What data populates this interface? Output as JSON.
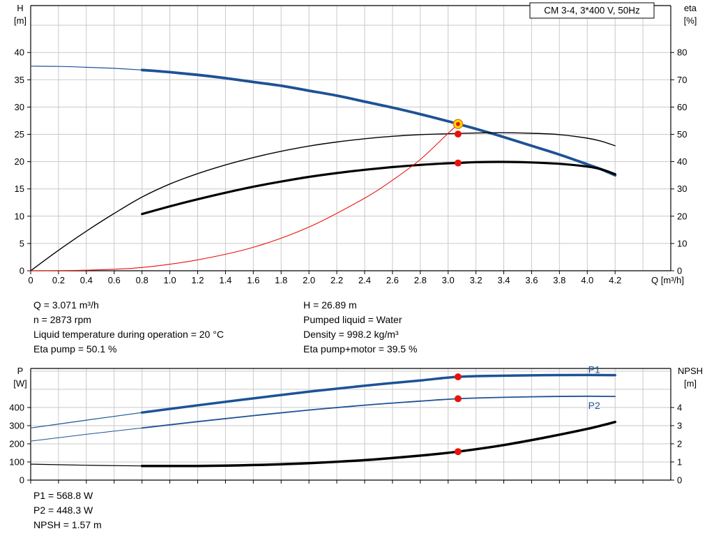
{
  "colors": {
    "blue": "#1d5296",
    "black": "#000000",
    "red": "#e8140c",
    "grid": "#c9c9c9",
    "axis": "#000000",
    "duty_fill": "#ffdf00",
    "duty_stroke": "#df7b00"
  },
  "chart_data": [
    {
      "id": "top",
      "type": "line",
      "title_box": "CM 3-4, 3*400 V, 50Hz",
      "x_axis": {
        "title": "Q [m³/h]",
        "tick_step": 0.2,
        "max": 4.6,
        "tick_labels": [
          "0",
          "0.2",
          "0.4",
          "0.6",
          "0.8",
          "1.0",
          "1.2",
          "1.4",
          "1.6",
          "1.8",
          "2.0",
          "2.2",
          "2.4",
          "2.6",
          "2.8",
          "3.0",
          "3.2",
          "3.4",
          "3.6",
          "3.8",
          "4.0",
          "4.2"
        ]
      },
      "left_axis": {
        "title": [
          "H",
          "[m]"
        ],
        "unit": "m",
        "tick_step": 5,
        "max": 48.6,
        "tick_labels": [
          "0",
          "5",
          "10",
          "15",
          "20",
          "25",
          "30",
          "35",
          "40"
        ]
      },
      "right_axis": {
        "title": [
          "eta",
          "[%]"
        ],
        "unit": "%",
        "max": 97.2,
        "tick_labels": [
          "0",
          "10",
          "20",
          "30",
          "40",
          "50",
          "60",
          "70",
          "80"
        ]
      },
      "series": [
        {
          "name": "head-curve",
          "label": "H pump curve",
          "axis": "left",
          "color": "blue",
          "width": 3.8,
          "thin_width": 1.2,
          "thick_from": 0.8,
          "points": [
            [
              0,
              37.5
            ],
            [
              0.2,
              37.45
            ],
            [
              0.4,
              37.3
            ],
            [
              0.6,
              37.1
            ],
            [
              0.8,
              36.8
            ],
            [
              1,
              36.4
            ],
            [
              1.2,
              35.9
            ],
            [
              1.4,
              35.3
            ],
            [
              1.6,
              34.6
            ],
            [
              1.8,
              33.9
            ],
            [
              2,
              33
            ],
            [
              2.2,
              32.1
            ],
            [
              2.4,
              31
            ],
            [
              2.6,
              29.9
            ],
            [
              2.8,
              28.7
            ],
            [
              3,
              27.4
            ],
            [
              3.071,
              26.89
            ],
            [
              3.2,
              26
            ],
            [
              3.4,
              24.5
            ],
            [
              3.6,
              22.9
            ],
            [
              3.8,
              21.3
            ],
            [
              4,
              19.5
            ],
            [
              4.1,
              18.6
            ],
            [
              4.2,
              17.5
            ]
          ]
        },
        {
          "name": "eta-pump-curve",
          "label": "Eta pump",
          "axis": "right",
          "color": "black",
          "width": 1.4,
          "points": [
            [
              0,
              0
            ],
            [
              0.2,
              7.5
            ],
            [
              0.4,
              14.5
            ],
            [
              0.6,
              21
            ],
            [
              0.8,
              27
            ],
            [
              1,
              31.8
            ],
            [
              1.2,
              35.6
            ],
            [
              1.4,
              38.8
            ],
            [
              1.6,
              41.5
            ],
            [
              1.8,
              43.8
            ],
            [
              2,
              45.7
            ],
            [
              2.2,
              47.2
            ],
            [
              2.4,
              48.4
            ],
            [
              2.6,
              49.3
            ],
            [
              2.8,
              49.9
            ],
            [
              3,
              50.2
            ],
            [
              3.2,
              50.5
            ],
            [
              3.4,
              50.6
            ],
            [
              3.6,
              50.4
            ],
            [
              3.8,
              49.9
            ],
            [
              4,
              48.6
            ],
            [
              4.1,
              47.5
            ],
            [
              4.2,
              45.8
            ]
          ]
        },
        {
          "name": "eta-pump-motor-curve",
          "label": "Eta pump+motor",
          "axis": "right",
          "color": "black",
          "width": 3.2,
          "points": [
            [
              0.8,
              20.8
            ],
            [
              1,
              23.6
            ],
            [
              1.2,
              26.2
            ],
            [
              1.4,
              28.6
            ],
            [
              1.6,
              30.8
            ],
            [
              1.8,
              32.7
            ],
            [
              2,
              34.4
            ],
            [
              2.2,
              35.8
            ],
            [
              2.4,
              37
            ],
            [
              2.6,
              38
            ],
            [
              2.8,
              38.8
            ],
            [
              3,
              39.4
            ],
            [
              3.071,
              39.5
            ],
            [
              3.2,
              39.8
            ],
            [
              3.4,
              39.9
            ],
            [
              3.6,
              39.7
            ],
            [
              3.8,
              39.2
            ],
            [
              4,
              38.2
            ],
            [
              4.1,
              37.2
            ],
            [
              4.2,
              35.4
            ]
          ]
        },
        {
          "name": "system-curve",
          "label": "System curve",
          "axis": "left",
          "color": "red",
          "width": 1.1,
          "points": [
            [
              0,
              0
            ],
            [
              0.4,
              0.1
            ],
            [
              0.8,
              0.6
            ],
            [
              1.2,
              2
            ],
            [
              1.6,
              4.3
            ],
            [
              2,
              8
            ],
            [
              2.4,
              13.3
            ],
            [
              2.6,
              16.6
            ],
            [
              2.8,
              20.4
            ],
            [
              3,
              25.2
            ],
            [
              3.071,
              26.89
            ]
          ]
        }
      ],
      "markers": [
        {
          "type": "duty",
          "q": 3.071,
          "value": 26.89,
          "axis": "left",
          "label": "Duty point Q-H"
        },
        {
          "type": "point",
          "q": 3.071,
          "value": 50.1,
          "axis": "right",
          "label": "Eta pump operating point"
        },
        {
          "type": "point",
          "q": 3.071,
          "value": 39.5,
          "axis": "right",
          "label": "Eta pump+motor operating point"
        }
      ]
    },
    {
      "id": "bottom",
      "type": "line",
      "x_axis": {
        "tick_step": 0.2,
        "max": 4.6
      },
      "left_axis": {
        "title": [
          "P",
          "[W]"
        ],
        "unit": "W",
        "tick_step": 100,
        "max": 615,
        "tick_labels": [
          "0",
          "100",
          "200",
          "300",
          "400"
        ]
      },
      "right_axis": {
        "title": [
          "NPSH",
          "[m]"
        ],
        "unit": "m",
        "max": 6.15,
        "tick_labels": [
          "0",
          "1",
          "2",
          "3",
          "4"
        ]
      },
      "series": [
        {
          "name": "p1-curve",
          "label": "P1",
          "axis": "left",
          "color": "blue",
          "width": 3.5,
          "thin_width": 1.2,
          "thick_from": 0.8,
          "points": [
            [
              0,
              287
            ],
            [
              0.4,
              330
            ],
            [
              0.8,
              372
            ],
            [
              1.2,
              412
            ],
            [
              1.6,
              450
            ],
            [
              2,
              487
            ],
            [
              2.4,
              520
            ],
            [
              2.8,
              549
            ],
            [
              3.071,
              568.8
            ],
            [
              3.4,
              575
            ],
            [
              3.7,
              578
            ],
            [
              4,
              579
            ],
            [
              4.2,
              578
            ]
          ]
        },
        {
          "name": "p2-curve",
          "label": "P2",
          "axis": "left",
          "color": "blue",
          "width": 1.8,
          "thin_width": 1,
          "thick_from": 0.8,
          "points": [
            [
              0,
              215
            ],
            [
              0.4,
              252
            ],
            [
              0.8,
              287
            ],
            [
              1.2,
              322
            ],
            [
              1.6,
              355
            ],
            [
              2,
              386
            ],
            [
              2.4,
              413
            ],
            [
              2.8,
              435
            ],
            [
              3.071,
              448.3
            ],
            [
              3.4,
              456
            ],
            [
              3.7,
              460
            ],
            [
              4,
              462
            ],
            [
              4.2,
              461
            ]
          ]
        },
        {
          "name": "npsh-curve",
          "label": "NPSH",
          "axis": "right",
          "color": "black",
          "width": 3.5,
          "thin_width": 1.2,
          "thick_from": 0.8,
          "points": [
            [
              0,
              0.88
            ],
            [
              0.4,
              0.82
            ],
            [
              0.8,
              0.78
            ],
            [
              1.2,
              0.78
            ],
            [
              1.6,
              0.83
            ],
            [
              2,
              0.93
            ],
            [
              2.4,
              1.1
            ],
            [
              2.8,
              1.35
            ],
            [
              3.071,
              1.57
            ],
            [
              3.4,
              1.93
            ],
            [
              3.7,
              2.35
            ],
            [
              4,
              2.82
            ],
            [
              4.2,
              3.2
            ]
          ]
        }
      ],
      "markers": [
        {
          "type": "point",
          "q": 3.071,
          "value": 568.8,
          "axis": "left",
          "label": "P1 operating point"
        },
        {
          "type": "point",
          "q": 3.071,
          "value": 448.3,
          "axis": "left",
          "label": "P2 operating point"
        },
        {
          "type": "point",
          "q": 3.071,
          "value": 1.57,
          "axis": "right",
          "label": "NPSH operating point"
        }
      ],
      "series_labels": [
        {
          "text": "P1",
          "q": 4.05,
          "value": 590,
          "axis": "left"
        },
        {
          "text": "P2",
          "q": 4.05,
          "value": 392,
          "axis": "left"
        }
      ]
    }
  ],
  "summary_top": {
    "left": [
      "Q = 3.071 m³/h",
      "n = 2873 rpm",
      "Liquid temperature during operation = 20 °C",
      "Eta pump = 50.1 %"
    ],
    "right": [
      "H = 26.89 m",
      "Pumped liquid = Water",
      "Density = 998.2 kg/m³",
      "Eta pump+motor = 39.5 %"
    ]
  },
  "summary_bottom": [
    "P1 = 568.8 W",
    "P2 = 448.3 W",
    "NPSH = 1.57 m"
  ]
}
